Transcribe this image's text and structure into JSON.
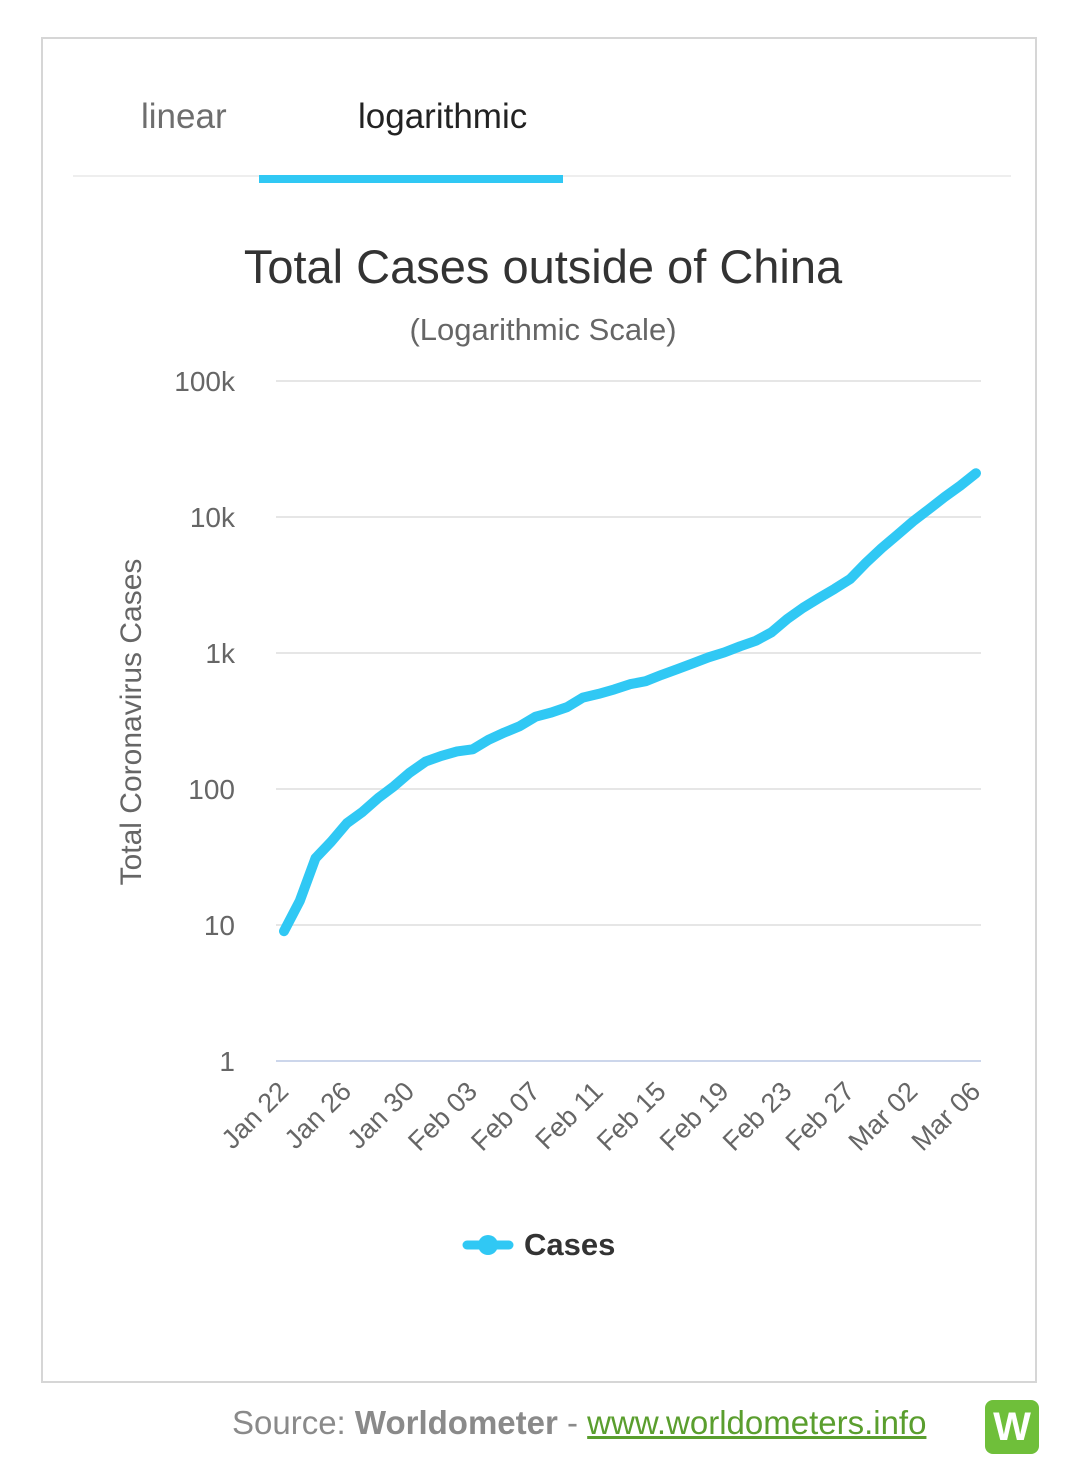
{
  "tabs": [
    {
      "label": "linear",
      "active": false
    },
    {
      "label": "logarithmic",
      "active": true
    }
  ],
  "colors": {
    "accent": "#30c8f4",
    "grid": "#e6e6e6",
    "axis": "#ccd6eb"
  },
  "chart_data": {
    "type": "line",
    "title": "Total Cases outside of China",
    "subtitle": "(Logarithmic Scale)",
    "ylabel": "Total Coronavirus Cases",
    "xlabel": "",
    "yscale": "log",
    "ylim": [
      1,
      100000
    ],
    "y_ticks": [
      {
        "value": 1,
        "label": "1"
      },
      {
        "value": 10,
        "label": "10"
      },
      {
        "value": 100,
        "label": "100"
      },
      {
        "value": 1000,
        "label": "1k"
      },
      {
        "value": 10000,
        "label": "10k"
      },
      {
        "value": 100000,
        "label": "100k"
      }
    ],
    "x_tick_labels": [
      "Jan 22",
      "Jan 26",
      "Jan 30",
      "Feb 03",
      "Feb 07",
      "Feb 11",
      "Feb 15",
      "Feb 19",
      "Feb 23",
      "Feb 27",
      "Mar 02",
      "Mar 06"
    ],
    "legend": {
      "position": "bottom",
      "entries": [
        "Cases"
      ]
    },
    "series": [
      {
        "name": "Cases",
        "color": "#30c8f4",
        "x": [
          "Jan 22",
          "Jan 23",
          "Jan 24",
          "Jan 25",
          "Jan 26",
          "Jan 27",
          "Jan 28",
          "Jan 29",
          "Jan 30",
          "Jan 31",
          "Feb 01",
          "Feb 02",
          "Feb 03",
          "Feb 04",
          "Feb 05",
          "Feb 06",
          "Feb 07",
          "Feb 08",
          "Feb 09",
          "Feb 10",
          "Feb 11",
          "Feb 12",
          "Feb 13",
          "Feb 14",
          "Feb 15",
          "Feb 16",
          "Feb 17",
          "Feb 18",
          "Feb 19",
          "Feb 20",
          "Feb 21",
          "Feb 22",
          "Feb 23",
          "Feb 24",
          "Feb 25",
          "Feb 26",
          "Feb 27",
          "Feb 28",
          "Feb 29",
          "Mar 01",
          "Mar 02",
          "Mar 03",
          "Mar 04",
          "Mar 05",
          "Mar 06"
        ],
        "values": [
          9,
          15,
          31,
          41,
          56,
          68,
          86,
          105,
          132,
          159,
          175,
          189,
          196,
          230,
          260,
          290,
          340,
          365,
          400,
          470,
          500,
          540,
          590,
          620,
          690,
          760,
          840,
          930,
          1010,
          1120,
          1230,
          1420,
          1780,
          2150,
          2530,
          2960,
          3500,
          4600,
          5900,
          7400,
          9300,
          11400,
          14000,
          17000,
          21000
        ]
      }
    ]
  },
  "footer": {
    "source_label": "Source:",
    "brand": "Worldometer",
    "separator": "-",
    "link": "www.worldometers.info",
    "logo_letter": "W"
  }
}
